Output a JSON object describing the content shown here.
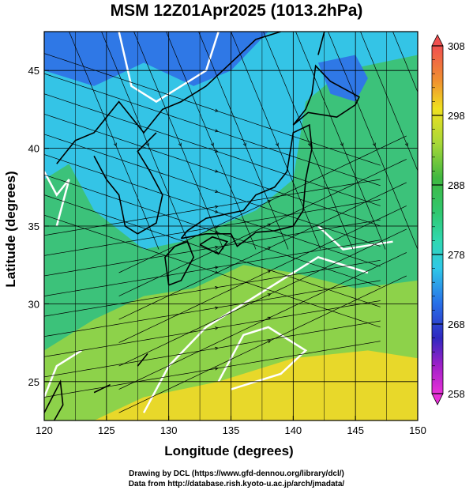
{
  "title": "MSM 12Z01Apr2025 (1013.2hPa)",
  "map": {
    "xlabel": "Longitude (degrees)",
    "ylabel": "Latitude  (degrees)",
    "lon_range": [
      120,
      150
    ],
    "lat_range": [
      22.5,
      47.5
    ],
    "lon_ticks": [
      120,
      125,
      130,
      135,
      140,
      145,
      150
    ],
    "lat_ticks": [
      25,
      30,
      35,
      40,
      45
    ],
    "grid": true
  },
  "colorbar": {
    "range": [
      258,
      308
    ],
    "labels": [
      308,
      298,
      288,
      278,
      268,
      258
    ],
    "stops": [
      {
        "v": 258,
        "c": "#e830d8"
      },
      {
        "v": 262,
        "c": "#a020c8"
      },
      {
        "v": 266,
        "c": "#3028c0"
      },
      {
        "v": 271,
        "c": "#2870e8"
      },
      {
        "v": 276,
        "c": "#30c8e8"
      },
      {
        "v": 280,
        "c": "#30d8b0"
      },
      {
        "v": 284,
        "c": "#30c870"
      },
      {
        "v": 289,
        "c": "#40b840"
      },
      {
        "v": 294,
        "c": "#a8d838"
      },
      {
        "v": 299,
        "c": "#f0e020"
      },
      {
        "v": 303,
        "c": "#f09030"
      },
      {
        "v": 308,
        "c": "#f05050"
      }
    ]
  },
  "credits": {
    "line1": "Drawing by DCL (https://www.gfd-dennou.org/library/dcl/)",
    "line2": "Data from http://database.rish.kyoto-u.ac.jp/arch/jmadata/"
  },
  "colors": {
    "cold": "#2f78e6",
    "cool": "#34c4e6",
    "mid": "#3cc27a",
    "warm": "#8dd24a",
    "hot": "#e8d82a",
    "contour": "#ffffff",
    "coast": "#000000"
  }
}
